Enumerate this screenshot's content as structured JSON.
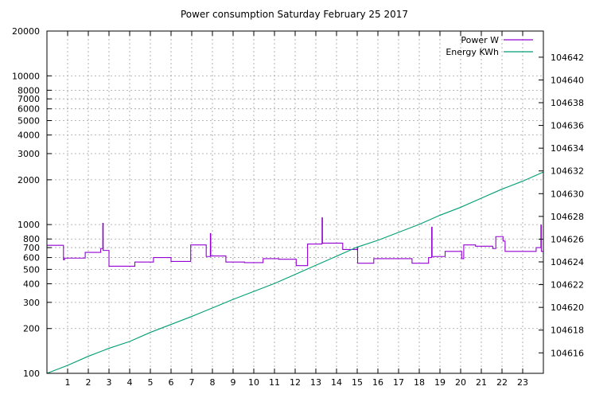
{
  "chart_data": {
    "type": "line",
    "title": "Power consumption Saturday February 25 2017",
    "grid": true,
    "legend_position": "top-right",
    "x_axis": {
      "range": [
        0,
        24
      ],
      "ticks": [
        1,
        2,
        3,
        4,
        5,
        6,
        7,
        8,
        9,
        10,
        11,
        12,
        13,
        14,
        15,
        16,
        17,
        18,
        19,
        20,
        21,
        22,
        23
      ]
    },
    "y_axis_left": {
      "scale": "log",
      "range": [
        100,
        20000
      ],
      "ticks": [
        100,
        200,
        300,
        400,
        500,
        600,
        700,
        800,
        1000,
        2000,
        3000,
        4000,
        5000,
        6000,
        7000,
        8000,
        10000,
        20000
      ]
    },
    "y_axis_right": {
      "scale": "linear",
      "range": [
        104614.2,
        104644.3
      ],
      "ticks": [
        104616,
        104618,
        104620,
        104622,
        104624,
        104626,
        104628,
        104630,
        104632,
        104634,
        104636,
        104638,
        104640,
        104642
      ]
    },
    "series": [
      {
        "name": "Power W",
        "color": "#9400d3",
        "axis": "left",
        "x": [
          0.0,
          0.8,
          0.8,
          0.85,
          0.85,
          1.85,
          1.85,
          2.6,
          2.6,
          2.7,
          2.7,
          2.72,
          2.72,
          3.0,
          3.0,
          4.25,
          4.25,
          5.15,
          5.15,
          5.15,
          6.0,
          6.0,
          6.95,
          6.95,
          7.7,
          7.7,
          7.9,
          7.9,
          7.92,
          7.92,
          8.65,
          8.65,
          9.55,
          9.55,
          10.45,
          10.45,
          11.2,
          11.2,
          12.05,
          12.05,
          12.6,
          12.6,
          13.3,
          13.3,
          13.32,
          13.32,
          14.3,
          14.3,
          15.0,
          15.0,
          15.02,
          15.02,
          15.8,
          15.8,
          17.65,
          17.65,
          18.45,
          18.45,
          18.6,
          18.6,
          18.62,
          18.62,
          19.25,
          19.25,
          20.05,
          20.05,
          20.15,
          20.15,
          20.72,
          20.72,
          21.55,
          21.55,
          21.7,
          21.7,
          22.05,
          22.05,
          22.15,
          22.15,
          23.65,
          23.65,
          23.88,
          23.88,
          23.9,
          23.9,
          24.0
        ],
        "y": [
          725,
          725,
          580,
          580,
          595,
          595,
          650,
          650,
          690,
          690,
          1020,
          1020,
          670,
          670,
          525,
          525,
          560,
          560,
          560,
          600,
          600,
          565,
          565,
          730,
          730,
          610,
          610,
          870,
          870,
          615,
          615,
          560,
          560,
          555,
          555,
          590,
          590,
          585,
          585,
          530,
          530,
          740,
          740,
          1110,
          1110,
          750,
          750,
          680,
          680,
          700,
          700,
          550,
          550,
          590,
          590,
          550,
          550,
          600,
          600,
          960,
          960,
          610,
          610,
          660,
          660,
          590,
          590,
          730,
          730,
          715,
          715,
          690,
          690,
          830,
          830,
          775,
          775,
          660,
          660,
          700,
          700,
          990,
          990,
          660,
          660
        ]
      },
      {
        "name": "Energy KWh",
        "color": "#009e73",
        "axis": "right",
        "x": [
          0,
          1,
          2,
          3,
          4,
          5,
          6,
          7,
          8,
          9,
          10,
          11,
          12,
          13,
          14,
          15,
          16,
          17,
          18,
          19,
          20,
          21,
          22,
          23,
          24
        ],
        "y": [
          104614.2,
          104614.9,
          104615.7,
          104616.4,
          104617.0,
          104617.8,
          104618.5,
          104619.2,
          104619.95,
          104620.7,
          104621.4,
          104622.1,
          104622.9,
          104623.7,
          104624.5,
          104625.3,
          104625.9,
          104626.6,
          104627.3,
          104628.1,
          104628.8,
          104629.6,
          104630.4,
          104631.1,
          104631.9
        ]
      }
    ]
  }
}
